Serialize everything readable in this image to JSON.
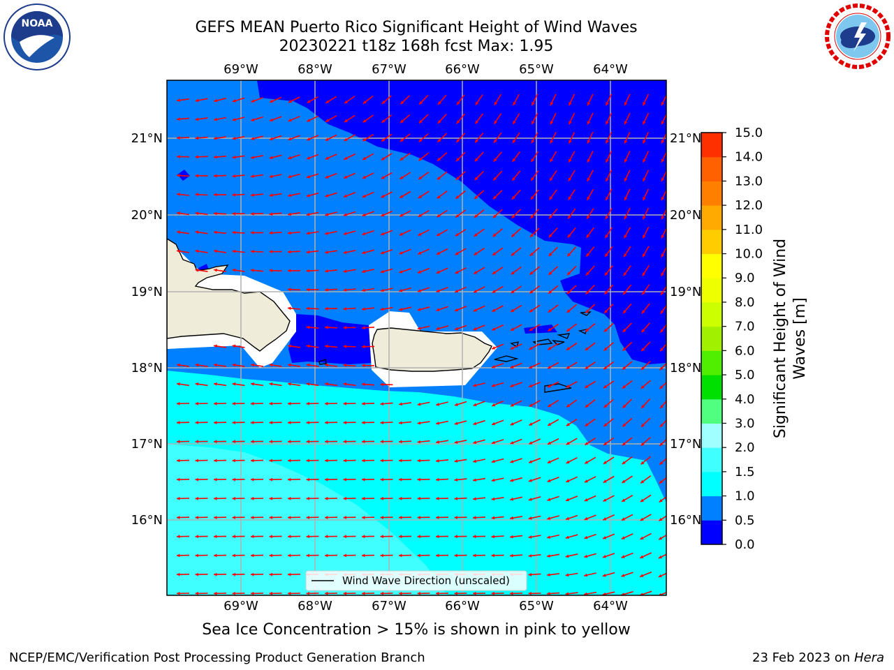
{
  "header": {
    "title_line1": "GEFS MEAN Puerto Rico Significant Height of Wind Waves",
    "title_line2": "20230221 t18z 168h fcst   Max: 1.95"
  },
  "map": {
    "lon_labels": [
      "69°W",
      "68°W",
      "67°W",
      "66°W",
      "65°W",
      "64°W"
    ],
    "lat_labels": [
      "21°N",
      "20°N",
      "19°N",
      "18°N",
      "17°N",
      "16°N"
    ],
    "legend_label": "Wind Wave Direction (unscaled)",
    "arrow_color": "#ff0000"
  },
  "colorbar": {
    "label_line1": "Significant Height of Wind",
    "label_line2": "Waves [m]",
    "ticks": [
      "15.0",
      "14.0",
      "13.0",
      "12.0",
      "11.0",
      "10.0",
      "9.0",
      "8.0",
      "7.0",
      "6.0",
      "5.0",
      "4.0",
      "3.0",
      "2.0",
      "1.5",
      "1.0",
      "0.5",
      "0.0"
    ],
    "colors": [
      "#0000ff",
      "#0080ff",
      "#00ffff",
      "#40ffff",
      "#a0ffff",
      "#50ff80",
      "#00e000",
      "#50ee00",
      "#a0f000",
      "#ccff00",
      "#eeff00",
      "#ffff00",
      "#ffcc00",
      "#ffaa00",
      "#ff8000",
      "#ff6000",
      "#ff3000"
    ]
  },
  "footer": {
    "ice_note": "Sea Ice Concentration > 15% is shown in pink to yellow",
    "producer": "NCEP/EMC/Verification Post Processing Product Generation Branch",
    "date": "23 Feb 2023 on",
    "host": "Hera"
  },
  "logos": {
    "noaa_text": "NOAA",
    "nws_text": "NATIONAL WEATHER SERVICE"
  }
}
